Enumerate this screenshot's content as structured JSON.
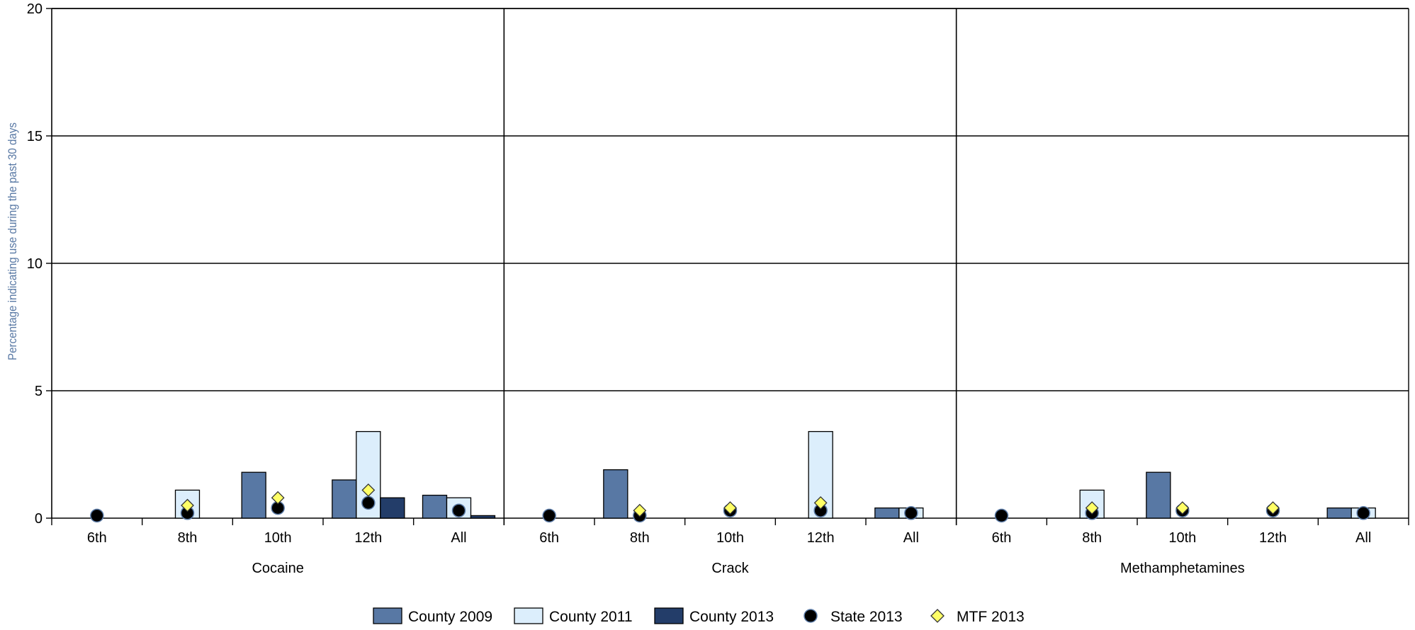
{
  "chart_data": {
    "type": "bar",
    "title": "",
    "ylabel": "Percentage indicating use during the past 30 days",
    "ylim": [
      0,
      20
    ],
    "yticks": [
      "0",
      "5",
      "10",
      "15",
      "20"
    ],
    "grid": true,
    "legend_position": "bottom-center",
    "groups": [
      {
        "name": "Cocaine",
        "categories": [
          "6th",
          "8th",
          "10th",
          "12th",
          "All"
        ],
        "series": {
          "County 2009": [
            0,
            0,
            1.8,
            1.5,
            0.9
          ],
          "County 2011": [
            0,
            1.1,
            0,
            3.4,
            0.8
          ],
          "County 2013": [
            0,
            0,
            0,
            0.8,
            0.1
          ],
          "State 2013": [
            0.1,
            0.2,
            0.4,
            0.6,
            0.3
          ],
          "MTF 2013": [
            null,
            0.5,
            0.8,
            1.1,
            null
          ]
        }
      },
      {
        "name": "Crack",
        "categories": [
          "6th",
          "8th",
          "10th",
          "12th",
          "All"
        ],
        "series": {
          "County 2009": [
            0,
            1.9,
            0,
            0,
            0.4
          ],
          "County 2011": [
            0,
            0,
            0,
            3.4,
            0.4
          ],
          "County 2013": [
            0,
            0,
            0,
            0,
            0
          ],
          "State 2013": [
            0.1,
            0.1,
            0.3,
            0.3,
            0.2
          ],
          "MTF 2013": [
            null,
            0.3,
            0.4,
            0.6,
            null
          ]
        }
      },
      {
        "name": "Methamphetamines",
        "categories": [
          "6th",
          "8th",
          "10th",
          "12th",
          "All"
        ],
        "series": {
          "County 2009": [
            0,
            0,
            1.8,
            0,
            0.4
          ],
          "County 2011": [
            0,
            1.1,
            0,
            0,
            0.4
          ],
          "County 2013": [
            0,
            0,
            0,
            0,
            0
          ],
          "State 2013": [
            0.1,
            0.2,
            0.3,
            0.3,
            0.2
          ],
          "MTF 2013": [
            null,
            0.4,
            0.4,
            0.4,
            null
          ]
        }
      }
    ],
    "legend": [
      {
        "name": "County 2009",
        "kind": "bar",
        "color": "#5878A4"
      },
      {
        "name": "County 2011",
        "kind": "bar",
        "color": "#DCEEFC"
      },
      {
        "name": "County 2013",
        "kind": "bar",
        "color": "#233D69"
      },
      {
        "name": "State 2013",
        "kind": "circle",
        "color": "#000000"
      },
      {
        "name": "MTF 2013",
        "kind": "diamond",
        "color": "#FFFF66"
      }
    ],
    "colors": {
      "ylabel": "#5878A4",
      "marker_stroke": "#5C7CA8",
      "diamond_stroke": "#333333"
    }
  }
}
